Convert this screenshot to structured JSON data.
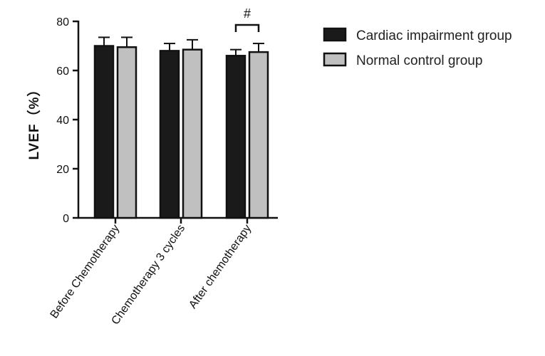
{
  "chart_data": {
    "type": "bar",
    "ylabel": "LVEF（%）",
    "xlabel": "",
    "ylim": [
      0,
      80
    ],
    "yticks": [
      0,
      20,
      40,
      60,
      80
    ],
    "categories": [
      "Before Chemotherapy",
      "Chemotherapy 3 cycles",
      "After chemotherapy"
    ],
    "series": [
      {
        "name": "Cardiac impairment group",
        "values": [
          70,
          68,
          66
        ],
        "errors": [
          3.5,
          3,
          2.5
        ],
        "color": "#1a1a1a"
      },
      {
        "name": "Normal control group",
        "values": [
          69.5,
          68.5,
          67.5
        ],
        "errors": [
          4,
          4,
          3.5
        ],
        "color": "#c0c0c0"
      }
    ],
    "annotations": [
      {
        "category": "After chemotherapy",
        "text": "#"
      }
    ],
    "legend_position": "top-right",
    "grid": false
  }
}
